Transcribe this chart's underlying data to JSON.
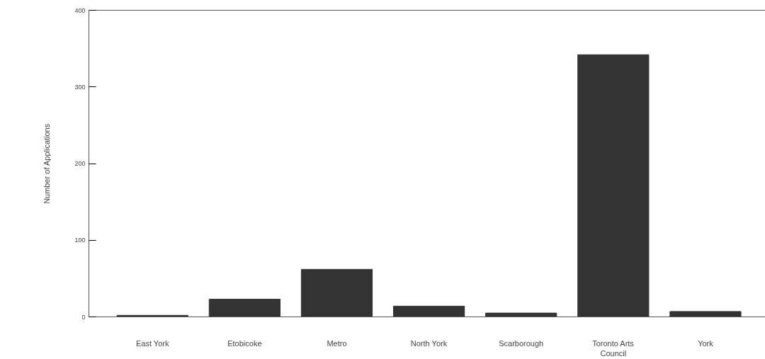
{
  "chart_data": {
    "type": "bar",
    "ylabel": "Number of Applications",
    "categories": [
      "East York",
      "Etobicoke",
      "Metro",
      "North York",
      "Scarborough",
      "Toronto Arts Council",
      "York"
    ],
    "values": [
      2,
      23,
      62,
      14,
      5,
      342,
      7
    ],
    "color": "#333333",
    "ylim": [
      0,
      400
    ],
    "yticks": [
      0,
      100,
      200,
      300,
      400
    ],
    "grid": false
  }
}
